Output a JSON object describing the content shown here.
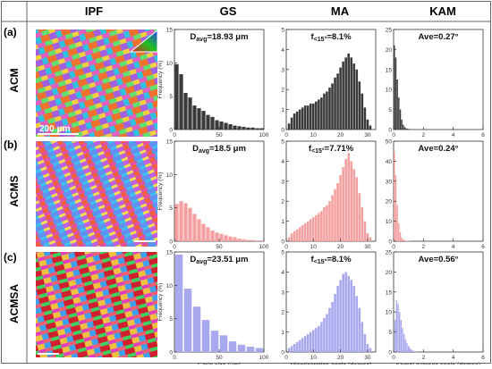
{
  "column_headers": [
    "IPF",
    "GS",
    "MA",
    "KAM"
  ],
  "rows": [
    {
      "label": "(a)",
      "name": "ACM"
    },
    {
      "label": "(b)",
      "name": "ACMS"
    },
    {
      "label": "(c)",
      "name": "ACMSA"
    }
  ],
  "scale_bar": "200 μm",
  "colors": {
    "ACM": "#3a3a3a",
    "ACMS": "#f5a0a0",
    "ACMSA": "#a8a8ee"
  },
  "chart_data": [
    {
      "type": "bar",
      "panel": "ACM-GS",
      "annotation": "Davg=18.93 μm",
      "ylabel": "Frequency (%)",
      "xlabel": "",
      "x_ticks": [
        0,
        50,
        100
      ],
      "y_ticks": [
        0,
        5,
        10,
        15
      ],
      "xlim": [
        0,
        100
      ],
      "ylim": [
        0,
        15
      ],
      "x": [
        2.5,
        7.5,
        12.5,
        17.5,
        22.5,
        27.5,
        32.5,
        37.5,
        42.5,
        47.5,
        52.5,
        57.5,
        62.5,
        67.5,
        72.5,
        77.5,
        82.5,
        87.5,
        92.5,
        97.5
      ],
      "values": [
        9.8,
        8.3,
        5.5,
        4.8,
        3.6,
        3.2,
        2.8,
        2.2,
        1.9,
        1.4,
        1.2,
        1,
        0.8,
        0.6,
        0.5,
        0.4,
        0.3,
        0.3,
        0.2,
        0.2
      ]
    },
    {
      "type": "bar",
      "panel": "ACM-MA",
      "annotation": "f<15°=8.1%",
      "ylabel": "",
      "xlabel": "",
      "x_ticks": [
        0,
        10,
        20,
        30
      ],
      "y_ticks": [
        0,
        1,
        2,
        3,
        4,
        5
      ],
      "xlim": [
        0,
        33
      ],
      "ylim": [
        0,
        5
      ],
      "x": [
        1,
        2,
        3,
        4,
        5,
        6,
        7,
        8,
        9,
        10,
        11,
        12,
        13,
        14,
        15,
        16,
        17,
        18,
        19,
        20,
        21,
        22,
        23,
        24,
        25,
        26,
        27,
        28,
        29,
        30,
        31
      ],
      "values": [
        0.3,
        0.6,
        0.8,
        0.9,
        1,
        1.1,
        1.2,
        1.2,
        1.3,
        1.3,
        1.4,
        1.5,
        1.6,
        1.8,
        1.9,
        2.1,
        2.3,
        2.6,
        2.8,
        3.1,
        3.4,
        3.6,
        3.8,
        3.6,
        3.3,
        3,
        2.4,
        1.8,
        1.1,
        0.5,
        0.2
      ]
    },
    {
      "type": "bar",
      "panel": "ACM-KAM",
      "annotation": "Ave=0.27°",
      "ylabel": "",
      "xlabel": "",
      "x_ticks": [
        0,
        2,
        4,
        6
      ],
      "y_ticks": [
        0,
        5,
        10,
        15,
        20,
        25
      ],
      "xlim": [
        0,
        6
      ],
      "ylim": [
        0,
        25
      ],
      "x": [
        0.05,
        0.15,
        0.25,
        0.35,
        0.45,
        0.55,
        0.65,
        0.75,
        0.85,
        0.95,
        1.05,
        1.15
      ],
      "values": [
        21,
        18,
        12.5,
        8,
        5,
        2.5,
        1.2,
        0.6,
        0.3,
        0.2,
        0.1,
        0.1
      ]
    },
    {
      "type": "bar",
      "panel": "ACMS-GS",
      "annotation": "Davg=18.5 μm",
      "ylabel": "Frequency (%)",
      "xlabel": "",
      "x_ticks": [
        0,
        50,
        100
      ],
      "y_ticks": [
        0,
        5,
        10,
        15
      ],
      "xlim": [
        0,
        100
      ],
      "ylim": [
        0,
        15
      ],
      "x": [
        2.5,
        7.5,
        12.5,
        17.5,
        22.5,
        27.5,
        32.5,
        37.5,
        42.5,
        47.5,
        52.5,
        57.5,
        62.5,
        67.5,
        72.5,
        77.5,
        82.5,
        87.5,
        92.5,
        97.5
      ],
      "values": [
        5.6,
        6,
        5.7,
        5,
        4.1,
        3.3,
        2.6,
        2.1,
        1.6,
        1.3,
        1.1,
        0.9,
        0.7,
        0.6,
        0.4,
        0.3,
        0.2,
        0.2,
        0.1,
        0.1
      ]
    },
    {
      "type": "bar",
      "panel": "ACMS-MA",
      "annotation": "f<15°=7.71%",
      "ylabel": "",
      "xlabel": "",
      "x_ticks": [
        0,
        10,
        20,
        30
      ],
      "y_ticks": [
        0,
        1,
        2,
        3,
        4,
        5
      ],
      "xlim": [
        0,
        33
      ],
      "ylim": [
        0,
        5
      ],
      "x": [
        1,
        2,
        3,
        4,
        5,
        6,
        7,
        8,
        9,
        10,
        11,
        12,
        13,
        14,
        15,
        16,
        17,
        18,
        19,
        20,
        21,
        22,
        23,
        24,
        25,
        26,
        27,
        28,
        29,
        30,
        31
      ],
      "values": [
        0.2,
        0.4,
        0.5,
        0.6,
        0.7,
        0.8,
        0.9,
        1,
        1.1,
        1.2,
        1.3,
        1.4,
        1.5,
        1.7,
        1.8,
        2,
        2.3,
        2.6,
        2.9,
        3.3,
        3.7,
        4.1,
        4.4,
        4,
        3.6,
        3.2,
        2.4,
        1.7,
        1,
        0.4,
        0.2
      ]
    },
    {
      "type": "bar",
      "panel": "ACMS-KAM",
      "annotation": "Ave=0.24°",
      "ylabel": "",
      "xlabel": "",
      "x_ticks": [
        0,
        2,
        4,
        6
      ],
      "y_ticks": [
        0,
        10,
        20,
        30,
        40,
        50
      ],
      "xlim": [
        0,
        6
      ],
      "ylim": [
        0,
        50
      ],
      "x": [
        0.05,
        0.15,
        0.25,
        0.35,
        0.45,
        0.55,
        0.65,
        0.75,
        0.85,
        0.95,
        1.05
      ],
      "values": [
        45,
        33,
        18,
        9,
        4.5,
        2,
        1,
        0.5,
        0.3,
        0.2,
        0.1
      ]
    },
    {
      "type": "bar",
      "panel": "ACMSA-GS",
      "annotation": "Davg=23.51 μm",
      "ylabel": "Frequency (%)",
      "xlabel": "Grain size (μm)",
      "x_ticks": [
        0,
        50,
        100
      ],
      "y_ticks": [
        0,
        5,
        10,
        15
      ],
      "xlim": [
        0,
        100
      ],
      "ylim": [
        0,
        15
      ],
      "x": [
        5,
        15,
        25,
        35,
        45,
        55,
        65,
        75,
        85,
        95
      ],
      "values": [
        14.6,
        9.5,
        6.8,
        4.8,
        3.2,
        2.5,
        1.6,
        1.1,
        0.8,
        0.6
      ]
    },
    {
      "type": "bar",
      "panel": "ACMSA-MA",
      "annotation": "f<15°=8.1%",
      "ylabel": "",
      "xlabel": "Misorientation angle (degree)",
      "x_ticks": [
        0,
        10,
        20,
        30
      ],
      "y_ticks": [
        0,
        1,
        2,
        3,
        4,
        5
      ],
      "xlim": [
        0,
        33
      ],
      "ylim": [
        0,
        5
      ],
      "x": [
        1,
        2,
        3,
        4,
        5,
        6,
        7,
        8,
        9,
        10,
        11,
        12,
        13,
        14,
        15,
        16,
        17,
        18,
        19,
        20,
        21,
        22,
        23,
        24,
        25,
        26,
        27,
        28,
        29,
        30,
        31
      ],
      "values": [
        0.2,
        0.3,
        0.4,
        0.5,
        0.6,
        0.7,
        0.8,
        0.9,
        1,
        1.1,
        1.2,
        1.3,
        1.5,
        1.7,
        1.9,
        2.2,
        2.5,
        2.9,
        3.3,
        3.6,
        3.9,
        4,
        3.8,
        3.6,
        3.3,
        2.8,
        2.2,
        1.5,
        0.9,
        0.4,
        0.2
      ]
    },
    {
      "type": "bar",
      "panel": "ACMSA-KAM",
      "annotation": "Ave=0.56°",
      "ylabel": "",
      "xlabel": "Kernel average angle (degree)",
      "x_ticks": [
        0,
        2,
        4,
        6
      ],
      "y_ticks": [
        0,
        5,
        10,
        15,
        20,
        25
      ],
      "xlim": [
        0,
        6
      ],
      "ylim": [
        0,
        25
      ],
      "x": [
        0.1,
        0.2,
        0.3,
        0.4,
        0.5,
        0.6,
        0.7,
        0.8,
        0.9,
        1,
        1.1,
        1.2,
        1.3,
        1.4,
        1.5
      ],
      "values": [
        8,
        13,
        12,
        10,
        8,
        6,
        4.5,
        3.2,
        2.2,
        1.5,
        1,
        0.6,
        0.4,
        0.2,
        0.1
      ]
    }
  ]
}
